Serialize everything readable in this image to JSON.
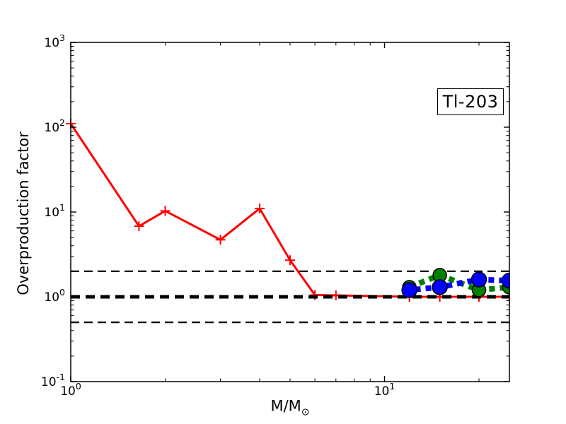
{
  "chart_data": {
    "type": "line",
    "title": "",
    "annotation_box": "Tl-203",
    "xlabel": "M/M☉",
    "xlabel_main": "M/M",
    "xlabel_sub": "⊙",
    "ylabel": "Overproduction factor",
    "x_scale": "log",
    "y_scale": "log",
    "xlim": [
      1,
      25
    ],
    "ylim": [
      0.1,
      1000
    ],
    "x_major_ticks": [
      {
        "value": 1,
        "base": "10",
        "exp": "0"
      },
      {
        "value": 10,
        "base": "10",
        "exp": "1"
      }
    ],
    "x_minor_ticks": [
      2,
      3,
      4,
      5,
      6,
      7,
      8,
      9,
      20
    ],
    "y_major_ticks": [
      {
        "value": 0.1,
        "base": "10",
        "exp": "-1"
      },
      {
        "value": 1,
        "base": "10",
        "exp": "0"
      },
      {
        "value": 10,
        "base": "10",
        "exp": "1"
      },
      {
        "value": 100,
        "base": "10",
        "exp": "2"
      },
      {
        "value": 1000,
        "base": "10",
        "exp": "3"
      }
    ],
    "y_minor_per_decade": [
      2,
      3,
      4,
      5,
      6,
      7,
      8,
      9
    ],
    "grid": false,
    "legend": "none",
    "reference_lines": [
      {
        "y": 2.0,
        "color": "#000000",
        "style": "dashed-thin"
      },
      {
        "y": 1.0,
        "color": "#000000",
        "style": "dashed-thick"
      },
      {
        "y": 0.5,
        "color": "#000000",
        "style": "dashed-thin"
      }
    ],
    "series": [
      {
        "name": "series-red",
        "color": "#ff0000",
        "line": "solid",
        "marker": "plus",
        "x": [
          1,
          1.65,
          2,
          3,
          4,
          5,
          6,
          7,
          12,
          15,
          20,
          25
        ],
        "y": [
          110,
          6.8,
          10.3,
          4.7,
          11,
          2.7,
          1.05,
          1.04,
          1.0,
          1.0,
          1.0,
          1.0
        ]
      },
      {
        "name": "series-green",
        "color": "#008000",
        "line": "dashed",
        "marker": "circle",
        "x": [
          12,
          15,
          20,
          25
        ],
        "y": [
          1.3,
          1.8,
          1.2,
          1.3
        ]
      },
      {
        "name": "series-blue",
        "color": "#0000ff",
        "line": "dashed",
        "marker": "circle",
        "x": [
          12,
          15,
          20,
          25
        ],
        "y": [
          1.2,
          1.3,
          1.6,
          1.55
        ]
      }
    ]
  }
}
